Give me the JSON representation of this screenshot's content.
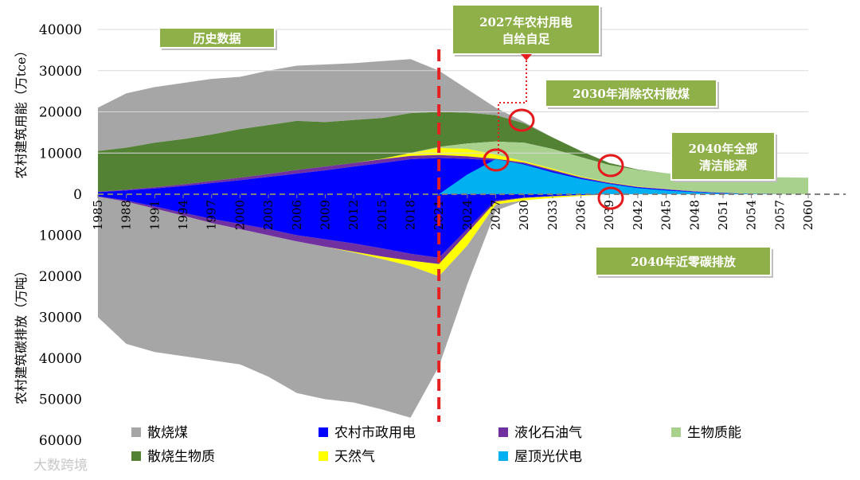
{
  "chart_data": {
    "type": "area",
    "ylabel_top": "农村建筑用能（万tce）",
    "ylabel_bottom": "农村建筑碳排放（万吨）",
    "yticks_top": [
      "40000",
      "30000",
      "20000",
      "10000",
      "0"
    ],
    "yticks_bottom": [
      "10000",
      "20000",
      "30000",
      "40000",
      "50000",
      "60000"
    ],
    "ylim_top": [
      0,
      40000
    ],
    "ylim_bottom": [
      0,
      60000
    ],
    "xlim": [
      1985,
      2060
    ],
    "xticks": [
      "1985",
      "1988",
      "1991",
      "1994",
      "1997",
      "2000",
      "2003",
      "2006",
      "2009",
      "2012",
      "2015",
      "2018",
      "2021",
      "2024",
      "2027",
      "2030",
      "2033",
      "2036",
      "2039",
      "2042",
      "2045",
      "2048",
      "2051",
      "2054",
      "2057",
      "2060"
    ],
    "colors": {
      "coal": "#a6a6a6",
      "biomass_burn": "#548235",
      "elec": "#0000ff",
      "lpg": "#7030a0",
      "biomass_energy": "#a9d18e",
      "gas": "#ffff00",
      "pv": "#00b0f0",
      "callout": "#8fb048",
      "divider": "#e62020",
      "circle": "#e31a1c"
    },
    "series": [
      {
        "key": "coal",
        "name": "散烧煤"
      },
      {
        "key": "elec",
        "name": "农村市政用电"
      },
      {
        "key": "lpg",
        "name": "液化石油气"
      },
      {
        "key": "biomass_energy",
        "name": "生物质能"
      },
      {
        "key": "biomass_burn",
        "name": "散烧生物质"
      },
      {
        "key": "gas",
        "name": "天然气"
      },
      {
        "key": "pv",
        "name": "屋顶光伏电"
      }
    ],
    "energy_x": [
      1985,
      1988,
      1991,
      1994,
      1997,
      2000,
      2003,
      2006,
      2009,
      2012,
      2015,
      2018,
      2021,
      2024,
      2027,
      2030,
      2033,
      2036,
      2039,
      2042,
      2045,
      2048,
      2051,
      2054,
      2057,
      2060
    ],
    "energy_cum": {
      "elec": [
        500,
        900,
        1400,
        2000,
        2700,
        3400,
        4200,
        5000,
        5800,
        6700,
        7600,
        8500,
        8800,
        8600,
        8200,
        7400,
        5600,
        3900,
        2600,
        1700,
        1100,
        600,
        300,
        100,
        0,
        0
      ],
      "lpg": [
        600,
        1100,
        1700,
        2400,
        3200,
        4000,
        4900,
        5900,
        6700,
        7600,
        8500,
        9300,
        9500,
        9200,
        8600,
        7700,
        5900,
        4100,
        2800,
        1800,
        1200,
        700,
        300,
        100,
        0,
        0
      ],
      "gas": [
        600,
        1100,
        1700,
        2400,
        3200,
        4000,
        4900,
        5900,
        6700,
        7600,
        8600,
        10000,
        11200,
        11000,
        9600,
        8000,
        6200,
        4300,
        2900,
        1900,
        1200,
        700,
        300,
        100,
        0,
        0
      ],
      "biomass_energy": [
        600,
        1100,
        1700,
        2400,
        3200,
        4000,
        4900,
        5900,
        6700,
        7600,
        8600,
        10000,
        11500,
        12300,
        12800,
        12500,
        11000,
        9000,
        7100,
        5900,
        5100,
        4600,
        4300,
        4200,
        4100,
        4000
      ],
      "biomass_burn": [
        10500,
        11300,
        12500,
        13400,
        14500,
        15800,
        16800,
        17800,
        17500,
        18000,
        18500,
        19700,
        20000,
        19800,
        19200,
        17200,
        13800,
        10500,
        7600,
        6000,
        5100,
        4600,
        4300,
        4200,
        4100,
        4000
      ],
      "coal": [
        21000,
        24500,
        26000,
        27000,
        28000,
        28500,
        30000,
        31200,
        31500,
        31800,
        32300,
        32800,
        30000,
        25500,
        21000,
        17500,
        13800,
        10500,
        7600,
        6000,
        5100,
        4600,
        4300,
        4200,
        4100,
        4000
      ]
    },
    "pv_x": [
      2021,
      2024,
      2027,
      2030,
      2033,
      2036,
      2039,
      2042,
      2045,
      2048,
      2051,
      2054,
      2057,
      2060
    ],
    "pv_y": [
      0,
      4800,
      8500,
      7200,
      5300,
      3700,
      2500,
      1500,
      900,
      500,
      200,
      100,
      0,
      0
    ],
    "emission_x": [
      1985,
      1988,
      1991,
      1994,
      1997,
      2000,
      2003,
      2006,
      2009,
      2012,
      2015,
      2018,
      2021,
      2024,
      2027,
      2030,
      2033,
      2036,
      2039,
      2042,
      2045,
      2048,
      2051,
      2054,
      2057,
      2060
    ],
    "emission_cum": {
      "elec": [
        500,
        1500,
        3000,
        4500,
        6000,
        7200,
        8500,
        10000,
        11000,
        12000,
        13200,
        14500,
        15500,
        8500,
        1500,
        800,
        400,
        200,
        0,
        0,
        0,
        0,
        0,
        0,
        0,
        0
      ],
      "lpg": [
        600,
        1800,
        3500,
        5200,
        7000,
        8500,
        10000,
        11500,
        12800,
        14000,
        15200,
        16200,
        17000,
        9500,
        1800,
        900,
        500,
        200,
        0,
        0,
        0,
        0,
        0,
        0,
        0,
        0
      ],
      "gas": [
        600,
        1800,
        3500,
        5200,
        7000,
        8500,
        10000,
        11500,
        12800,
        14200,
        15800,
        17500,
        20000,
        12500,
        2500,
        1500,
        900,
        400,
        0,
        0,
        0,
        0,
        0,
        0,
        0,
        0
      ],
      "coal": [
        30000,
        36500,
        38500,
        39500,
        40500,
        41500,
        44500,
        48500,
        50000,
        50800,
        52500,
        54500,
        42000,
        22000,
        4000,
        1500,
        900,
        400,
        0,
        0,
        0,
        0,
        0,
        0,
        0,
        0
      ]
    },
    "divider_year": 2021,
    "annotations": [
      {
        "text": "历史数据"
      },
      {
        "text": "2027年农村用电",
        "text2": "自给自足"
      },
      {
        "text": "2030年消除农村散煤"
      },
      {
        "text": "2040年全部",
        "text2": "清洁能源"
      },
      {
        "text": "2040年近零碳排放"
      }
    ],
    "watermark": "大数跨境"
  }
}
